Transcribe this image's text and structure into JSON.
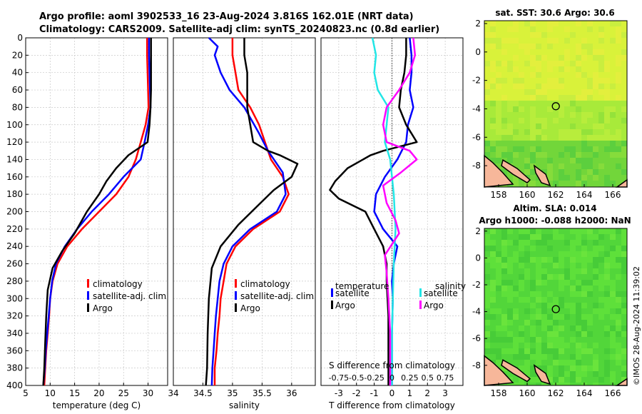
{
  "title": {
    "line1": "Argo profile: aoml 3902533_16 23-Aug-2024 3.816S 162.01E (NRT data)",
    "line2": "Climatology: CARS2009. Satellite-adj clim: synTS_20240823.nc (0.8d earlier)"
  },
  "side": {
    "sst_title": "sat. SST: 30.6 Argo: 30.6",
    "sla_title1": "Altim. SLA: 0.014",
    "sla_title2": "Argo h1000: -0.088 h2000: NaN",
    "credit": "©IMOS 28-Aug-2024 11:39:02"
  },
  "colors": {
    "climatology": "#ff0000",
    "satellite": "#0000ff",
    "argo": "#000000",
    "sat_salinity": "#22e6e6",
    "salinity_diff": "#ff00ff",
    "land": "#f7b79a"
  },
  "chart_data": [
    {
      "type": "line",
      "name": "temperature",
      "xlabel": "temperature (deg C)",
      "xlim": [
        5,
        34
      ],
      "ylim": [
        400,
        0
      ],
      "xticks": [
        5,
        10,
        15,
        20,
        25,
        30
      ],
      "yticks": [
        0,
        20,
        40,
        60,
        80,
        100,
        120,
        140,
        160,
        180,
        200,
        220,
        240,
        260,
        280,
        300,
        320,
        340,
        360,
        380,
        400
      ],
      "legend": [
        "climatology",
        "satellite-adj. clim",
        "Argo"
      ],
      "series": [
        {
          "name": "climatology",
          "color": "#ff0000",
          "points": [
            [
              29.8,
              0
            ],
            [
              29.8,
              20
            ],
            [
              29.9,
              40
            ],
            [
              30.0,
              60
            ],
            [
              30.1,
              80
            ],
            [
              29.5,
              100
            ],
            [
              28.5,
              120
            ],
            [
              27.5,
              140
            ],
            [
              26.0,
              160
            ],
            [
              23.5,
              180
            ],
            [
              20.0,
              200
            ],
            [
              16.5,
              220
            ],
            [
              13.5,
              240
            ],
            [
              11.5,
              260
            ],
            [
              10.5,
              280
            ],
            [
              10.0,
              300
            ],
            [
              9.8,
              320
            ],
            [
              9.5,
              340
            ],
            [
              9.2,
              360
            ],
            [
              9.0,
              380
            ],
            [
              8.8,
              400
            ]
          ]
        },
        {
          "name": "satellite-adj. clim",
          "color": "#0000ff",
          "points": [
            [
              30.2,
              0
            ],
            [
              30.2,
              20
            ],
            [
              30.3,
              40
            ],
            [
              30.4,
              60
            ],
            [
              30.5,
              80
            ],
            [
              30.0,
              100
            ],
            [
              29.3,
              120
            ],
            [
              28.5,
              140
            ],
            [
              25.0,
              160
            ],
            [
              22.0,
              180
            ],
            [
              18.5,
              200
            ],
            [
              15.5,
              220
            ],
            [
              13.0,
              240
            ],
            [
              11.2,
              260
            ],
            [
              10.4,
              280
            ],
            [
              10.0,
              300
            ],
            [
              9.7,
              320
            ],
            [
              9.4,
              340
            ],
            [
              9.1,
              360
            ],
            [
              8.9,
              380
            ],
            [
              8.6,
              400
            ]
          ]
        },
        {
          "name": "Argo",
          "color": "#000000",
          "points": [
            [
              30.6,
              0
            ],
            [
              30.6,
              20
            ],
            [
              30.6,
              40
            ],
            [
              30.6,
              60
            ],
            [
              30.5,
              80
            ],
            [
              30.3,
              100
            ],
            [
              29.9,
              120
            ],
            [
              26.0,
              135
            ],
            [
              23.5,
              150
            ],
            [
              21.5,
              165
            ],
            [
              20.0,
              180
            ],
            [
              17.5,
              200
            ],
            [
              15.0,
              225
            ],
            [
              12.5,
              245
            ],
            [
              10.5,
              265
            ],
            [
              9.5,
              290
            ],
            [
              9.2,
              320
            ],
            [
              9.0,
              350
            ],
            [
              8.8,
              380
            ],
            [
              8.6,
              400
            ]
          ]
        }
      ]
    },
    {
      "type": "line",
      "name": "salinity",
      "xlabel": "salinity",
      "xlim": [
        34,
        36.4
      ],
      "ylim": [
        400,
        0
      ],
      "xticks": [
        34,
        34.5,
        35,
        35.5,
        36
      ],
      "legend": [
        "climatology",
        "satellite-adj. clim",
        "Argo"
      ],
      "series": [
        {
          "name": "climatology",
          "color": "#ff0000",
          "points": [
            [
              35.0,
              0
            ],
            [
              35.0,
              20
            ],
            [
              35.05,
              40
            ],
            [
              35.1,
              60
            ],
            [
              35.3,
              80
            ],
            [
              35.45,
              100
            ],
            [
              35.55,
              120
            ],
            [
              35.65,
              140
            ],
            [
              35.85,
              160
            ],
            [
              35.95,
              180
            ],
            [
              35.8,
              200
            ],
            [
              35.35,
              220
            ],
            [
              35.05,
              240
            ],
            [
              34.9,
              260
            ],
            [
              34.85,
              280
            ],
            [
              34.8,
              300
            ],
            [
              34.78,
              320
            ],
            [
              34.75,
              340
            ],
            [
              34.73,
              360
            ],
            [
              34.7,
              380
            ],
            [
              34.7,
              400
            ]
          ]
        },
        {
          "name": "satellite-adj. clim",
          "color": "#0000ff",
          "points": [
            [
              34.6,
              0
            ],
            [
              34.75,
              10
            ],
            [
              34.7,
              20
            ],
            [
              34.8,
              40
            ],
            [
              34.95,
              60
            ],
            [
              35.2,
              80
            ],
            [
              35.45,
              110
            ],
            [
              35.6,
              130
            ],
            [
              35.85,
              155
            ],
            [
              35.9,
              180
            ],
            [
              35.75,
              200
            ],
            [
              35.3,
              220
            ],
            [
              35.0,
              240
            ],
            [
              34.85,
              260
            ],
            [
              34.78,
              280
            ],
            [
              34.75,
              300
            ],
            [
              34.72,
              320
            ],
            [
              34.7,
              340
            ],
            [
              34.68,
              360
            ],
            [
              34.66,
              380
            ],
            [
              34.65,
              400
            ]
          ]
        },
        {
          "name": "Argo",
          "color": "#000000",
          "points": [
            [
              35.2,
              0
            ],
            [
              35.2,
              20
            ],
            [
              35.25,
              40
            ],
            [
              35.25,
              60
            ],
            [
              35.25,
              80
            ],
            [
              35.3,
              100
            ],
            [
              35.35,
              120
            ],
            [
              35.6,
              130
            ],
            [
              35.8,
              135
            ],
            [
              36.1,
              145
            ],
            [
              36.0,
              160
            ],
            [
              35.7,
              175
            ],
            [
              35.4,
              195
            ],
            [
              35.1,
              215
            ],
            [
              34.8,
              240
            ],
            [
              34.65,
              265
            ],
            [
              34.6,
              300
            ],
            [
              34.58,
              340
            ],
            [
              34.57,
              380
            ],
            [
              34.55,
              400
            ]
          ]
        }
      ]
    },
    {
      "type": "line",
      "name": "differences",
      "xlabel": "T difference from climatology",
      "top_label": "S difference from climatology",
      "xlim": [
        -4,
        4
      ],
      "ylim": [
        400,
        0
      ],
      "xticks": [
        -3,
        -2,
        -1,
        0,
        1,
        2,
        3
      ],
      "top_ticks": [
        "-0.75",
        "-0.5",
        "-0.25",
        "0",
        "0.25",
        "0.5",
        "0.75"
      ],
      "top_tick_pos": [
        -3,
        -2,
        -1,
        0,
        1,
        2,
        3
      ],
      "legend_headers": [
        "temperature",
        "salinity"
      ],
      "legend_left": [
        "satellite",
        "Argo"
      ],
      "legend_right": [
        "satellite",
        "Argo"
      ],
      "series": [
        {
          "name": "temperature satellite",
          "color": "#0000ff",
          "points": [
            [
              1.0,
              0
            ],
            [
              1.1,
              20
            ],
            [
              1.1,
              40
            ],
            [
              1.0,
              60
            ],
            [
              1.2,
              80
            ],
            [
              0.9,
              100
            ],
            [
              0.8,
              120
            ],
            [
              0.3,
              140
            ],
            [
              -0.4,
              160
            ],
            [
              -0.9,
              180
            ],
            [
              -1.0,
              200
            ],
            [
              -0.5,
              220
            ],
            [
              0.3,
              240
            ],
            [
              0.1,
              260
            ],
            [
              0.0,
              280
            ],
            [
              0.05,
              300
            ],
            [
              0.0,
              340
            ],
            [
              0.0,
              380
            ],
            [
              0.0,
              400
            ]
          ]
        },
        {
          "name": "temperature Argo",
          "color": "#000000",
          "points": [
            [
              0.8,
              0
            ],
            [
              0.8,
              20
            ],
            [
              0.7,
              40
            ],
            [
              0.5,
              60
            ],
            [
              0.4,
              80
            ],
            [
              0.8,
              100
            ],
            [
              1.4,
              120
            ],
            [
              -0.5,
              130
            ],
            [
              -1.2,
              135
            ],
            [
              -2.5,
              150
            ],
            [
              -3.2,
              165
            ],
            [
              -3.5,
              175
            ],
            [
              -3.0,
              185
            ],
            [
              -1.5,
              200
            ],
            [
              -1.0,
              220
            ],
            [
              -0.5,
              240
            ],
            [
              -0.3,
              260
            ],
            [
              -0.3,
              280
            ],
            [
              -0.2,
              320
            ],
            [
              -0.2,
              360
            ],
            [
              -0.2,
              400
            ]
          ]
        },
        {
          "name": "salinity satellite",
          "color": "#22e6e6",
          "points": [
            [
              -1.1,
              0
            ],
            [
              -0.9,
              20
            ],
            [
              -1.0,
              40
            ],
            [
              -0.8,
              60
            ],
            [
              -0.2,
              80
            ],
            [
              -0.3,
              100
            ],
            [
              -0.4,
              120
            ],
            [
              -0.1,
              140
            ],
            [
              0.1,
              180
            ],
            [
              0.2,
              220
            ],
            [
              0.1,
              260
            ],
            [
              0.05,
              300
            ],
            [
              0.0,
              340
            ],
            [
              0.0,
              380
            ],
            [
              0.0,
              400
            ]
          ]
        },
        {
          "name": "salinity Argo",
          "color": "#ff00ff",
          "points": [
            [
              1.2,
              0
            ],
            [
              1.3,
              20
            ],
            [
              1.0,
              40
            ],
            [
              0.4,
              60
            ],
            [
              -0.3,
              80
            ],
            [
              -0.5,
              100
            ],
            [
              -0.3,
              120
            ],
            [
              1.0,
              130
            ],
            [
              1.4,
              140
            ],
            [
              0.5,
              155
            ],
            [
              -0.5,
              170
            ],
            [
              -0.3,
              190
            ],
            [
              0.2,
              210
            ],
            [
              0.4,
              225
            ],
            [
              -0.4,
              250
            ],
            [
              -0.3,
              270
            ],
            [
              -0.2,
              300
            ],
            [
              -0.1,
              340
            ],
            [
              -0.1,
              380
            ],
            [
              -0.1,
              400
            ]
          ]
        }
      ]
    },
    {
      "type": "heatmap",
      "name": "sst_map",
      "xticks": [
        158,
        160,
        162,
        164,
        166
      ],
      "yticks": [
        2,
        0,
        -2,
        -4,
        -6,
        -8
      ],
      "xlim": [
        157,
        167
      ],
      "ylim": [
        -9.5,
        2.2
      ],
      "marker": {
        "lon": 162.01,
        "lat": -3.816
      }
    },
    {
      "type": "heatmap",
      "name": "sla_map",
      "xticks": [
        158,
        160,
        162,
        164,
        166
      ],
      "yticks": [
        2,
        0,
        -2,
        -4,
        -6,
        -8
      ],
      "xlim": [
        157,
        167
      ],
      "ylim": [
        -9.5,
        2.2
      ],
      "marker": {
        "lon": 162.01,
        "lat": -3.816
      }
    }
  ]
}
